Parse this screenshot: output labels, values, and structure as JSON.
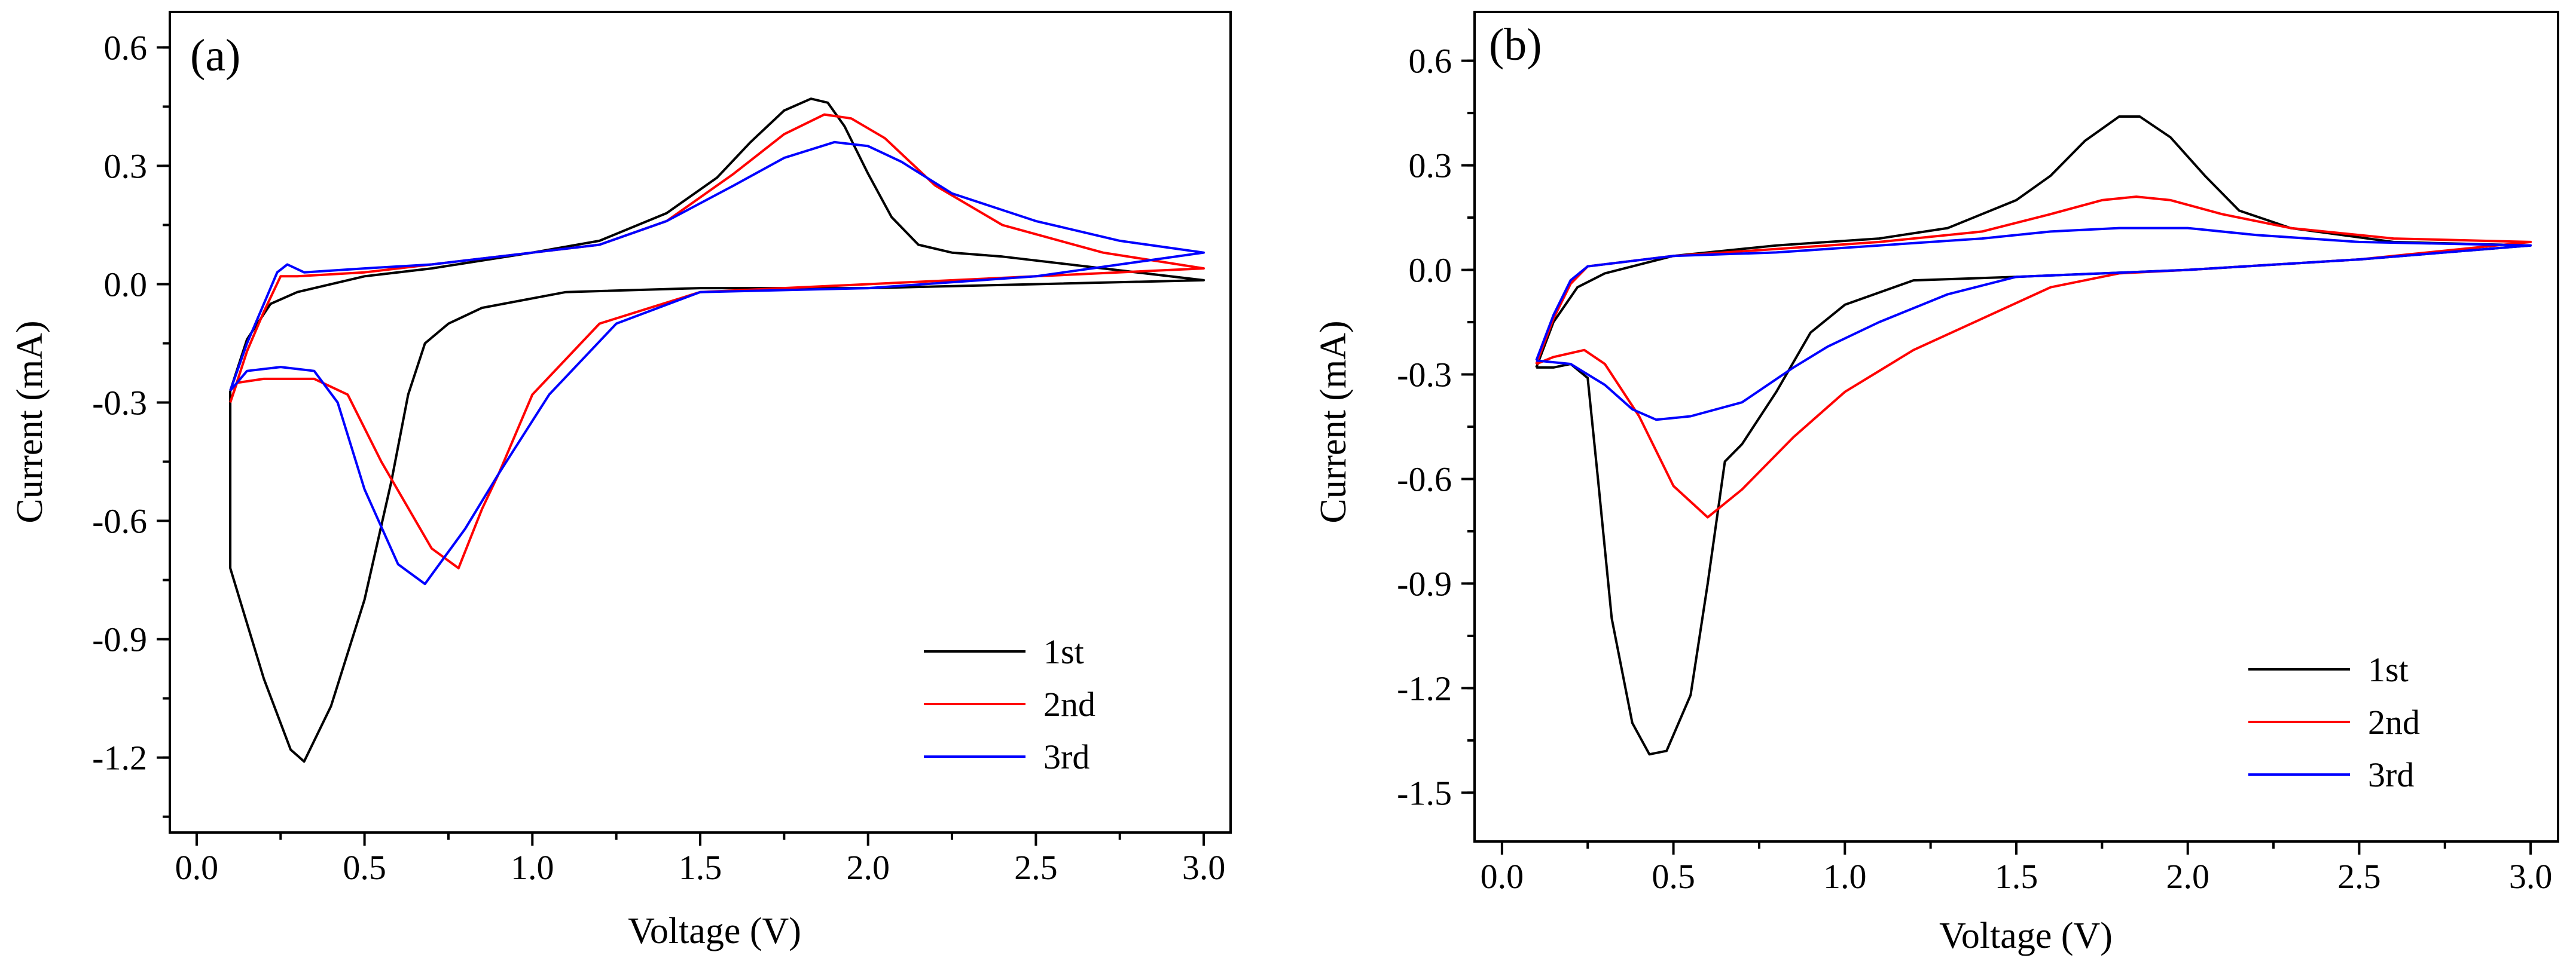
{
  "chart_data": [
    {
      "type": "line",
      "panel_label": "(a)",
      "xlabel": "Voltage (V)",
      "ylabel": "Current (mA)",
      "xlim": [
        -0.08,
        3.08
      ],
      "ylim": [
        -1.39,
        0.69
      ],
      "xticks": [
        0.0,
        0.5,
        1.0,
        1.5,
        2.0,
        2.5,
        3.0
      ],
      "xtick_labels": [
        "0.0",
        "0.5",
        "1.0",
        "1.5",
        "2.0",
        "2.5",
        "3.0"
      ],
      "yticks": [
        0.6,
        0.3,
        0.0,
        -0.3,
        -0.6,
        -0.9,
        -1.2
      ],
      "ytick_labels": [
        "0.6",
        "0.3",
        "0.0",
        "-0.3",
        "-0.6",
        "-0.9",
        "-1.2"
      ],
      "legend": "bottom-right",
      "series": [
        {
          "name": "1st",
          "color": "#000000",
          "points": [
            [
              0.1,
              -0.27
            ],
            [
              0.15,
              -0.14
            ],
            [
              0.22,
              -0.05
            ],
            [
              0.3,
              -0.02
            ],
            [
              0.5,
              0.02
            ],
            [
              0.7,
              0.04
            ],
            [
              1.0,
              0.08
            ],
            [
              1.2,
              0.11
            ],
            [
              1.4,
              0.18
            ],
            [
              1.55,
              0.27
            ],
            [
              1.65,
              0.36
            ],
            [
              1.75,
              0.44
            ],
            [
              1.83,
              0.47
            ],
            [
              1.88,
              0.46
            ],
            [
              1.93,
              0.4
            ],
            [
              2.0,
              0.28
            ],
            [
              2.07,
              0.17
            ],
            [
              2.15,
              0.1
            ],
            [
              2.25,
              0.08
            ],
            [
              2.4,
              0.07
            ],
            [
              2.7,
              0.04
            ],
            [
              3.0,
              0.01
            ],
            [
              2.5,
              0.0
            ],
            [
              2.0,
              -0.01
            ],
            [
              1.5,
              -0.01
            ],
            [
              1.1,
              -0.02
            ],
            [
              0.85,
              -0.06
            ],
            [
              0.75,
              -0.1
            ],
            [
              0.68,
              -0.15
            ],
            [
              0.63,
              -0.28
            ],
            [
              0.58,
              -0.5
            ],
            [
              0.5,
              -0.8
            ],
            [
              0.4,
              -1.07
            ],
            [
              0.32,
              -1.21
            ],
            [
              0.28,
              -1.18
            ],
            [
              0.2,
              -1.0
            ],
            [
              0.15,
              -0.86
            ],
            [
              0.1,
              -0.72
            ],
            [
              0.1,
              -0.27
            ]
          ]
        },
        {
          "name": "2nd",
          "color": "#ff0000",
          "points": [
            [
              0.1,
              -0.3
            ],
            [
              0.15,
              -0.17
            ],
            [
              0.2,
              -0.07
            ],
            [
              0.25,
              0.02
            ],
            [
              0.3,
              0.02
            ],
            [
              0.5,
              0.03
            ],
            [
              0.7,
              0.05
            ],
            [
              1.0,
              0.08
            ],
            [
              1.2,
              0.1
            ],
            [
              1.4,
              0.16
            ],
            [
              1.6,
              0.28
            ],
            [
              1.75,
              0.38
            ],
            [
              1.87,
              0.43
            ],
            [
              1.95,
              0.42
            ],
            [
              2.05,
              0.37
            ],
            [
              2.2,
              0.25
            ],
            [
              2.4,
              0.15
            ],
            [
              2.7,
              0.08
            ],
            [
              3.0,
              0.04
            ],
            [
              2.5,
              0.02
            ],
            [
              2.0,
              0.0
            ],
            [
              1.5,
              -0.02
            ],
            [
              1.2,
              -0.1
            ],
            [
              1.0,
              -0.28
            ],
            [
              0.9,
              -0.48
            ],
            [
              0.85,
              -0.57
            ],
            [
              0.78,
              -0.72
            ],
            [
              0.7,
              -0.67
            ],
            [
              0.55,
              -0.45
            ],
            [
              0.45,
              -0.28
            ],
            [
              0.35,
              -0.24
            ],
            [
              0.2,
              -0.24
            ],
            [
              0.12,
              -0.25
            ],
            [
              0.1,
              -0.3
            ]
          ]
        },
        {
          "name": "3rd",
          "color": "#0000ff",
          "points": [
            [
              0.1,
              -0.27
            ],
            [
              0.15,
              -0.15
            ],
            [
              0.2,
              -0.05
            ],
            [
              0.24,
              0.03
            ],
            [
              0.27,
              0.05
            ],
            [
              0.32,
              0.03
            ],
            [
              0.5,
              0.04
            ],
            [
              0.7,
              0.05
            ],
            [
              1.0,
              0.08
            ],
            [
              1.2,
              0.1
            ],
            [
              1.4,
              0.16
            ],
            [
              1.6,
              0.25
            ],
            [
              1.75,
              0.32
            ],
            [
              1.9,
              0.36
            ],
            [
              2.0,
              0.35
            ],
            [
              2.1,
              0.31
            ],
            [
              2.25,
              0.23
            ],
            [
              2.5,
              0.16
            ],
            [
              2.75,
              0.11
            ],
            [
              3.0,
              0.08
            ],
            [
              2.5,
              0.02
            ],
            [
              2.0,
              -0.01
            ],
            [
              1.5,
              -0.02
            ],
            [
              1.25,
              -0.1
            ],
            [
              1.05,
              -0.28
            ],
            [
              0.9,
              -0.48
            ],
            [
              0.8,
              -0.62
            ],
            [
              0.68,
              -0.76
            ],
            [
              0.6,
              -0.71
            ],
            [
              0.5,
              -0.52
            ],
            [
              0.42,
              -0.3
            ],
            [
              0.35,
              -0.22
            ],
            [
              0.25,
              -0.21
            ],
            [
              0.15,
              -0.22
            ],
            [
              0.1,
              -0.27
            ]
          ]
        }
      ]
    },
    {
      "type": "line",
      "panel_label": "(b)",
      "xlabel": "Voltage (V)",
      "ylabel": "Current (mA)",
      "xlim": [
        -0.08,
        3.08
      ],
      "ylim": [
        -1.64,
        0.74
      ],
      "xticks": [
        0.0,
        0.5,
        1.0,
        1.5,
        2.0,
        2.5,
        3.0
      ],
      "xtick_labels": [
        "0.0",
        "0.5",
        "1.0",
        "1.5",
        "2.0",
        "2.5",
        "3.0"
      ],
      "yticks": [
        0.6,
        0.3,
        0.0,
        -0.3,
        -0.6,
        -0.9,
        -1.2,
        -1.5
      ],
      "ytick_labels": [
        "0.6",
        "0.3",
        "0.0",
        "-0.3",
        "-0.6",
        "-0.9",
        "-1.2",
        "-1.5"
      ],
      "legend": "bottom-right",
      "series": [
        {
          "name": "1st",
          "color": "#000000",
          "points": [
            [
              0.1,
              -0.28
            ],
            [
              0.15,
              -0.15
            ],
            [
              0.22,
              -0.05
            ],
            [
              0.3,
              -0.01
            ],
            [
              0.5,
              0.04
            ],
            [
              0.8,
              0.07
            ],
            [
              1.1,
              0.09
            ],
            [
              1.3,
              0.12
            ],
            [
              1.5,
              0.2
            ],
            [
              1.6,
              0.27
            ],
            [
              1.7,
              0.37
            ],
            [
              1.8,
              0.44
            ],
            [
              1.86,
              0.44
            ],
            [
              1.95,
              0.38
            ],
            [
              2.05,
              0.27
            ],
            [
              2.15,
              0.17
            ],
            [
              2.3,
              0.12
            ],
            [
              2.6,
              0.08
            ],
            [
              3.0,
              0.07
            ],
            [
              2.5,
              0.03
            ],
            [
              2.0,
              0.0
            ],
            [
              1.5,
              -0.02
            ],
            [
              1.2,
              -0.03
            ],
            [
              1.0,
              -0.1
            ],
            [
              0.9,
              -0.18
            ],
            [
              0.8,
              -0.35
            ],
            [
              0.7,
              -0.5
            ],
            [
              0.65,
              -0.55
            ],
            [
              0.6,
              -0.9
            ],
            [
              0.55,
              -1.22
            ],
            [
              0.48,
              -1.38
            ],
            [
              0.43,
              -1.39
            ],
            [
              0.38,
              -1.3
            ],
            [
              0.32,
              -1.0
            ],
            [
              0.28,
              -0.6
            ],
            [
              0.25,
              -0.31
            ],
            [
              0.2,
              -0.27
            ],
            [
              0.15,
              -0.28
            ],
            [
              0.1,
              -0.28
            ]
          ]
        },
        {
          "name": "2nd",
          "color": "#ff0000",
          "points": [
            [
              0.1,
              -0.27
            ],
            [
              0.15,
              -0.14
            ],
            [
              0.2,
              -0.04
            ],
            [
              0.25,
              0.01
            ],
            [
              0.5,
              0.04
            ],
            [
              0.8,
              0.06
            ],
            [
              1.1,
              0.08
            ],
            [
              1.4,
              0.11
            ],
            [
              1.6,
              0.16
            ],
            [
              1.75,
              0.2
            ],
            [
              1.85,
              0.21
            ],
            [
              1.95,
              0.2
            ],
            [
              2.1,
              0.16
            ],
            [
              2.3,
              0.12
            ],
            [
              2.6,
              0.09
            ],
            [
              3.0,
              0.08
            ],
            [
              2.5,
              0.03
            ],
            [
              2.0,
              0.0
            ],
            [
              1.8,
              -0.01
            ],
            [
              1.6,
              -0.05
            ],
            [
              1.4,
              -0.14
            ],
            [
              1.2,
              -0.23
            ],
            [
              1.0,
              -0.35
            ],
            [
              0.85,
              -0.48
            ],
            [
              0.7,
              -0.63
            ],
            [
              0.6,
              -0.71
            ],
            [
              0.5,
              -0.62
            ],
            [
              0.4,
              -0.42
            ],
            [
              0.3,
              -0.27
            ],
            [
              0.24,
              -0.23
            ],
            [
              0.15,
              -0.25
            ],
            [
              0.1,
              -0.27
            ]
          ]
        },
        {
          "name": "3rd",
          "color": "#0000ff",
          "points": [
            [
              0.1,
              -0.26
            ],
            [
              0.15,
              -0.13
            ],
            [
              0.2,
              -0.03
            ],
            [
              0.25,
              0.01
            ],
            [
              0.5,
              0.04
            ],
            [
              0.8,
              0.05
            ],
            [
              1.1,
              0.07
            ],
            [
              1.4,
              0.09
            ],
            [
              1.6,
              0.11
            ],
            [
              1.8,
              0.12
            ],
            [
              2.0,
              0.12
            ],
            [
              2.2,
              0.1
            ],
            [
              2.5,
              0.08
            ],
            [
              3.0,
              0.07
            ],
            [
              2.5,
              0.03
            ],
            [
              2.0,
              0.0
            ],
            [
              1.5,
              -0.02
            ],
            [
              1.3,
              -0.07
            ],
            [
              1.1,
              -0.15
            ],
            [
              0.95,
              -0.22
            ],
            [
              0.85,
              -0.28
            ],
            [
              0.7,
              -0.38
            ],
            [
              0.55,
              -0.42
            ],
            [
              0.45,
              -0.43
            ],
            [
              0.38,
              -0.4
            ],
            [
              0.3,
              -0.33
            ],
            [
              0.2,
              -0.27
            ],
            [
              0.1,
              -0.26
            ]
          ]
        }
      ]
    }
  ]
}
